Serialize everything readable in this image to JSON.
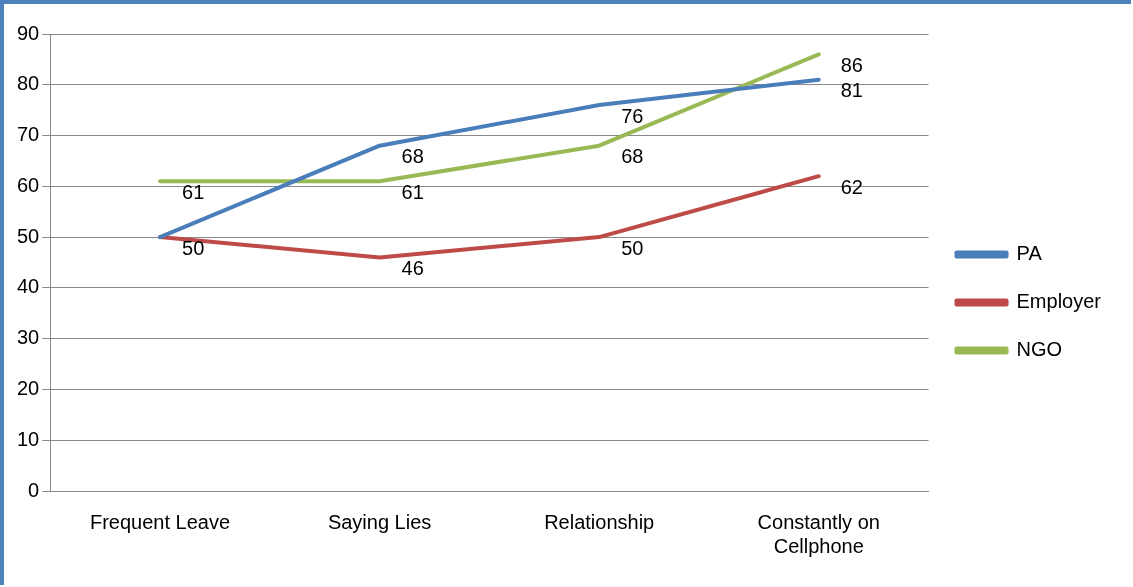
{
  "chart_data": {
    "type": "line",
    "categories": [
      "Frequent Leave",
      "Saying Lies",
      "Relationship",
      "Constantly on Cellphone"
    ],
    "series": [
      {
        "name": "PA",
        "color": "#4a7ebb",
        "values": [
          50,
          68,
          76,
          81
        ],
        "value_labels": [
          "50",
          "68",
          "76",
          "81"
        ]
      },
      {
        "name": "Employer",
        "color": "#be4b48",
        "values": [
          50,
          46,
          50,
          62
        ],
        "value_labels": [
          null,
          "46",
          "50",
          "62"
        ]
      },
      {
        "name": "NGO",
        "color": "#98b954",
        "values": [
          61,
          61,
          68,
          86
        ],
        "value_labels": [
          "61",
          "61",
          "68",
          "86"
        ]
      }
    ],
    "ylim": [
      0,
      90
    ],
    "yticks": [
      0,
      10,
      20,
      30,
      40,
      50,
      60,
      70,
      80,
      90
    ],
    "grid": "y",
    "legend": "right",
    "marker": "none",
    "line_style": "solid"
  }
}
